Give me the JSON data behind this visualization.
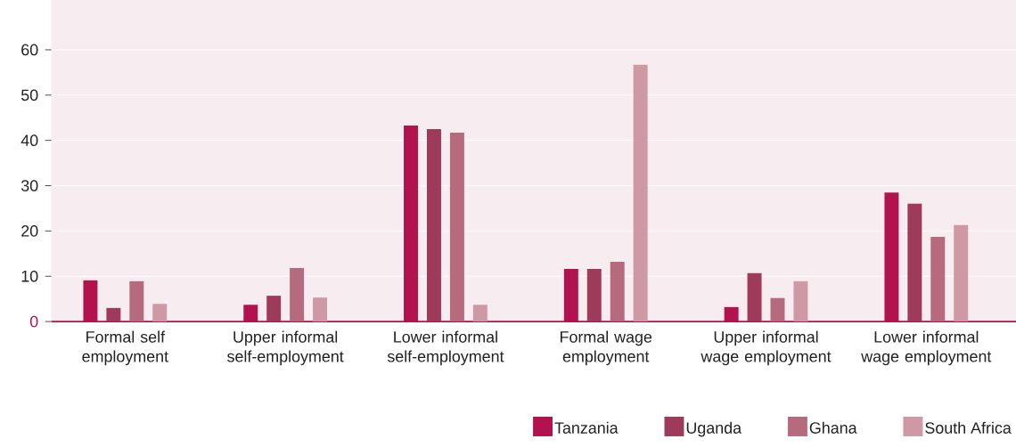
{
  "chart_data": {
    "type": "bar",
    "categories": [
      "Formal self employment",
      "Upper informal self-employment",
      "Lower informal self-employment",
      "Formal wage employment",
      "Upper informal wage employment",
      "Lower informal wage employment"
    ],
    "series": [
      {
        "name": "Tanzania",
        "color": "#b2134f",
        "values": [
          9.1,
          3.7,
          43.3,
          11.6,
          3.2,
          28.5
        ]
      },
      {
        "name": "Uganda",
        "color": "#9e3b5a",
        "values": [
          3.0,
          5.7,
          42.5,
          11.6,
          10.7,
          26.0
        ]
      },
      {
        "name": "Ghana",
        "color": "#b66a7d",
        "values": [
          8.9,
          11.8,
          41.7,
          13.2,
          5.2,
          18.7
        ]
      },
      {
        "name": "South Africa",
        "color": "#cf98a5",
        "values": [
          3.9,
          5.3,
          3.7,
          56.7,
          8.9,
          21.3
        ]
      }
    ],
    "ylim": [
      0,
      71
    ],
    "yticks": [
      0,
      10,
      20,
      30,
      40,
      50,
      60
    ],
    "grid": "y",
    "legend": "bottom right"
  }
}
